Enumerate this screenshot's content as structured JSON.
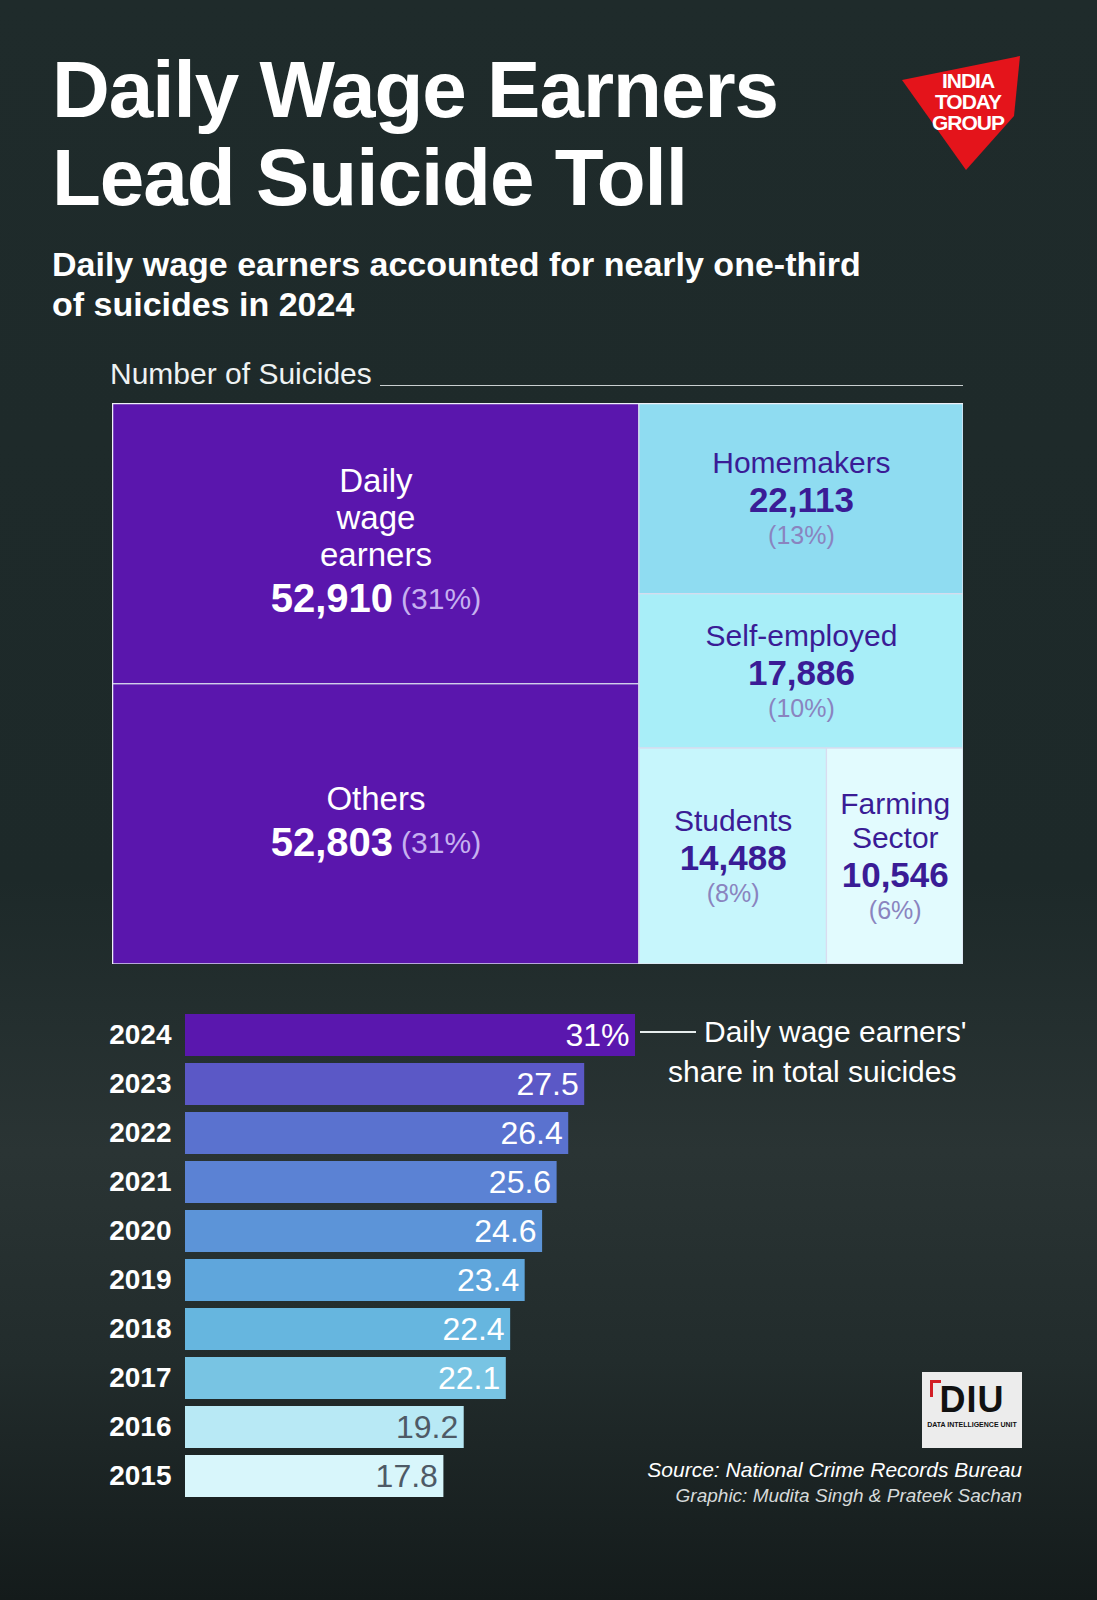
{
  "title": "Daily Wage Earners Lead Suicide Toll",
  "subtitle": "Daily wage earners accounted for nearly one-third of suicides in 2024",
  "chart_data": [
    {
      "type": "treemap",
      "title": "Number of Suicides",
      "categories": [
        "Daily wage earners",
        "Others",
        "Homemakers",
        "Self-employed",
        "Students",
        "Farming Sector"
      ],
      "values": [
        52910,
        52803,
        22113,
        17886,
        14488,
        10546
      ],
      "value_labels": [
        "52,910",
        "52,803",
        "22,113",
        "17,886",
        "14,488",
        "10,546"
      ],
      "shares": [
        31,
        31,
        13,
        10,
        8,
        6
      ],
      "share_labels": [
        "(31%)",
        "(31%)",
        "(13%)",
        "(10%)",
        "(8%)",
        "(6%)"
      ],
      "colors": [
        "#5a16ad",
        "#5a16ad",
        "#8fdcf1",
        "#a8eef8",
        "#c7f6fc",
        "#e2fbfe"
      ],
      "data_labels": true
    },
    {
      "type": "bar",
      "orientation": "horizontal",
      "categories": [
        "2024",
        "2023",
        "2022",
        "2021",
        "2020",
        "2019",
        "2018",
        "2017",
        "2016",
        "2015"
      ],
      "values": [
        31,
        27.5,
        26.4,
        25.6,
        24.6,
        23.4,
        22.4,
        22.1,
        19.2,
        17.8
      ],
      "value_labels": [
        "31%",
        "27.5",
        "26.4",
        "25.6",
        "24.6",
        "23.4",
        "22.4",
        "22.1",
        "19.2",
        "17.8"
      ],
      "colors": [
        "#5a17ae",
        "#5b58c6",
        "#5a72cf",
        "#5b82d4",
        "#5c94d8",
        "#5fa6dc",
        "#66b6df",
        "#78c4e3",
        "#b8e9f5",
        "#d8f6fb"
      ],
      "xlim": [
        0,
        31
      ],
      "tick_labels": "y",
      "data_labels": true,
      "annotation": "Daily wage earners' share in total suicides"
    }
  ],
  "source": "Source: National Crime Records Bureau",
  "credit": "Graphic: Mudita Singh & Prateek Sachan",
  "logos": {
    "publisher": [
      "INDIA",
      "TODAY",
      "GROUP"
    ],
    "unit": "DIU",
    "unit_name": "DATA INTELLIGENCE UNIT"
  }
}
